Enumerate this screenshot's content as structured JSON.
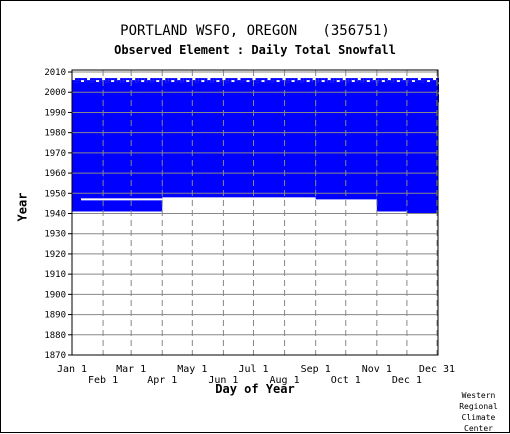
{
  "chart_data": {
    "type": "heatmap",
    "title": "PORTLAND WSFO, OREGON   (356751)",
    "subtitle": "Observed Element : Daily Total Snowfall",
    "xlabel": "Day of Year",
    "ylabel": "Year",
    "ylim": [
      1870,
      2011
    ],
    "yticks": [
      1870,
      1880,
      1890,
      1900,
      1910,
      1920,
      1930,
      1940,
      1950,
      1960,
      1970,
      1980,
      1990,
      2000,
      2010
    ],
    "xticks_upper": [
      "Jan 1",
      "Mar 1",
      "May 1",
      "Jul 1",
      "Sep 1",
      "Nov 1",
      "Dec 31"
    ],
    "xticks_lower": [
      "Feb 1",
      "Apr 1",
      "Jun 1",
      "Aug 1",
      "Oct 1",
      "Dec 1"
    ],
    "xtick_days": [
      1,
      32,
      60,
      91,
      121,
      152,
      182,
      213,
      244,
      274,
      305,
      335,
      365
    ],
    "grid": true,
    "colors": {
      "data_present": "#0000ff",
      "missing": "#ffffff",
      "grid": "#888888"
    },
    "coverage_full_years": [
      1949,
      2005
    ],
    "coverage_start_by_period": [
      {
        "from_day": 1,
        "to_day": 32,
        "start_year": 1941
      },
      {
        "from_day": 32,
        "to_day": 91,
        "start_year": 1941
      },
      {
        "from_day": 91,
        "to_day": 244,
        "start_year": 1948
      },
      {
        "from_day": 244,
        "to_day": 305,
        "start_year": 1947
      },
      {
        "from_day": 305,
        "to_day": 335,
        "start_year": 1941
      },
      {
        "from_day": 335,
        "to_day": 366,
        "start_year": 1940
      }
    ]
  },
  "credit": [
    "Western",
    "Regional",
    "Climate",
    "Center"
  ]
}
